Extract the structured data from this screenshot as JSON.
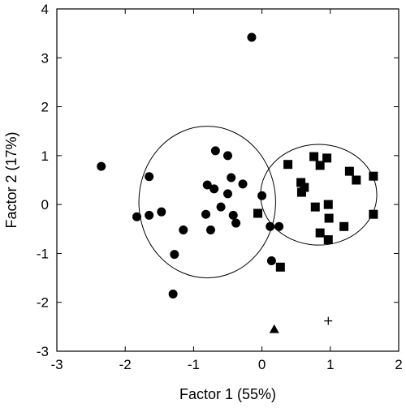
{
  "chart_data": {
    "type": "scatter",
    "title": "",
    "xlabel": "Factor 1 (55%)",
    "ylabel": "Factor 2 (17%)",
    "xlim": [
      -3,
      2
    ],
    "ylim": [
      -3,
      4
    ],
    "x_ticks": [
      -3,
      -2,
      -1,
      0,
      1,
      2
    ],
    "y_ticks": [
      -3,
      -2,
      -1,
      0,
      1,
      2,
      3,
      4
    ],
    "grid": false,
    "series": [
      {
        "marker": "circle",
        "color": "#000000",
        "points": [
          [
            -0.15,
            3.42
          ],
          [
            -2.35,
            0.78
          ],
          [
            -1.65,
            0.57
          ],
          [
            -1.65,
            -0.22
          ],
          [
            -1.83,
            -0.25
          ],
          [
            -1.47,
            -0.15
          ],
          [
            -1.15,
            -0.52
          ],
          [
            -1.28,
            -1.02
          ],
          [
            -1.3,
            -1.83
          ],
          [
            -0.68,
            1.1
          ],
          [
            -0.5,
            1.0
          ],
          [
            -0.8,
            0.4
          ],
          [
            -0.7,
            0.32
          ],
          [
            -0.45,
            0.55
          ],
          [
            -0.28,
            0.42
          ],
          [
            -0.5,
            0.22
          ],
          [
            -0.6,
            -0.05
          ],
          [
            -0.82,
            -0.2
          ],
          [
            -0.42,
            -0.22
          ],
          [
            -0.38,
            -0.38
          ],
          [
            -0.75,
            -0.52
          ],
          [
            0.0,
            0.18
          ],
          [
            0.12,
            -0.45
          ],
          [
            0.25,
            -0.45
          ],
          [
            0.14,
            -1.15
          ]
        ]
      },
      {
        "marker": "square",
        "color": "#000000",
        "points": [
          [
            0.38,
            0.82
          ],
          [
            0.76,
            0.98
          ],
          [
            0.95,
            0.95
          ],
          [
            0.85,
            0.8
          ],
          [
            0.57,
            0.45
          ],
          [
            0.62,
            0.35
          ],
          [
            0.58,
            0.25
          ],
          [
            1.28,
            0.68
          ],
          [
            1.38,
            0.5
          ],
          [
            1.63,
            0.58
          ],
          [
            0.97,
            0.0
          ],
          [
            0.78,
            -0.05
          ],
          [
            0.98,
            -0.28
          ],
          [
            1.2,
            -0.45
          ],
          [
            1.63,
            -0.2
          ],
          [
            0.85,
            -0.58
          ],
          [
            0.97,
            -0.72
          ],
          [
            -0.06,
            -0.18
          ],
          [
            0.27,
            -1.28
          ]
        ]
      },
      {
        "marker": "triangle",
        "color": "#000000",
        "points": [
          [
            0.18,
            -2.55
          ]
        ]
      },
      {
        "marker": "plus",
        "color": "#000000",
        "points": [
          [
            0.97,
            -2.38
          ]
        ]
      }
    ],
    "ellipses": [
      {
        "cx": -0.8,
        "cy": 0.05,
        "rx": 1.0,
        "ry": 1.55
      },
      {
        "cx": 0.83,
        "cy": 0.2,
        "rx": 0.85,
        "ry": 1.03
      }
    ]
  }
}
